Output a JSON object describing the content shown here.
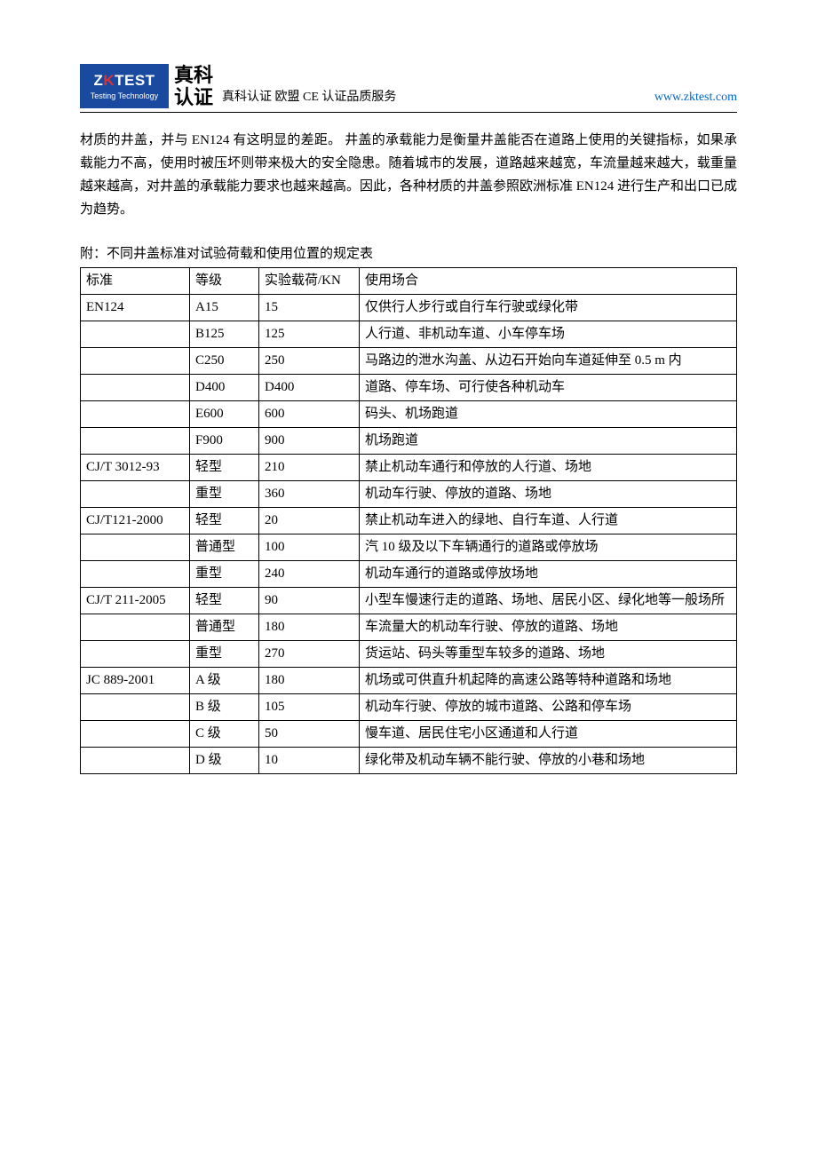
{
  "header": {
    "logo_en_prefix": "Z",
    "logo_en_mid": "K",
    "logo_en_suffix": "TEST",
    "logo_sub": "Testing Technology",
    "logo_cn_line1": "真科",
    "logo_cn_line2": "认证",
    "title": "真科认证 欧盟 CE 认证品质服务",
    "url": "www.zktest.com"
  },
  "paragraph": "材质的井盖，并与 EN124 有这明显的差距。 井盖的承载能力是衡量井盖能否在道路上使用的关键指标，如果承载能力不高，使用时被压坏则带来极大的安全隐患。随着城市的发展，道路越来越宽，车流量越来越大，载重量越来越高，对井盖的承载能力要求也越来越高。因此，各种材质的井盖参照欧洲标准 EN124 进行生产和出口已成为趋势。",
  "caption": "附：不同井盖标准对试验荷载和使用位置的规定表",
  "table": {
    "headers": [
      "标准",
      "等级",
      "实验载荷/KN",
      "使用场合"
    ],
    "rows": [
      [
        "EN124",
        "A15",
        "15",
        "仅供行人步行或自行车行驶或绿化带"
      ],
      [
        "",
        "B125",
        "125",
        "人行道、非机动车道、小车停车场"
      ],
      [
        "",
        "C250",
        "250",
        "马路边的泄水沟盖、从边石开始向车道延伸至 0.5 m 内"
      ],
      [
        "",
        "D400",
        "D400",
        "道路、停车场、可行使各种机动车"
      ],
      [
        "",
        "E600",
        "600",
        "码头、机场跑道"
      ],
      [
        "",
        "F900",
        "900",
        "机场跑道"
      ],
      [
        "CJ/T 3012-93",
        "轻型",
        "210",
        "禁止机动车通行和停放的人行道、场地"
      ],
      [
        "",
        "重型",
        "360",
        "机动车行驶、停放的道路、场地"
      ],
      [
        "CJ/T121-2000",
        "轻型",
        "20",
        "禁止机动车进入的绿地、自行车道、人行道"
      ],
      [
        "",
        "普通型",
        "100",
        "汽 10 级及以下车辆通行的道路或停放场"
      ],
      [
        "",
        "重型",
        "240",
        "机动车通行的道路或停放场地"
      ],
      [
        "CJ/T 211-2005",
        "轻型",
        "90",
        "小型车慢速行走的道路、场地、居民小区、绿化地等一般场所"
      ],
      [
        "",
        "普通型",
        "180",
        "车流量大的机动车行驶、停放的道路、场地"
      ],
      [
        "",
        "重型",
        "270",
        "货运站、码头等重型车较多的道路、场地"
      ],
      [
        "JC 889-2001",
        "A 级",
        "180",
        "机场或可供直升机起降的高速公路等特种道路和场地"
      ],
      [
        "",
        "B 级",
        "105",
        "机动车行驶、停放的城市道路、公路和停车场"
      ],
      [
        "",
        "C 级",
        "50",
        "慢车道、居民住宅小区通道和人行道"
      ],
      [
        "",
        "D 级",
        "10",
        "绿化带及机动车辆不能行驶、停放的小巷和场地"
      ]
    ]
  }
}
